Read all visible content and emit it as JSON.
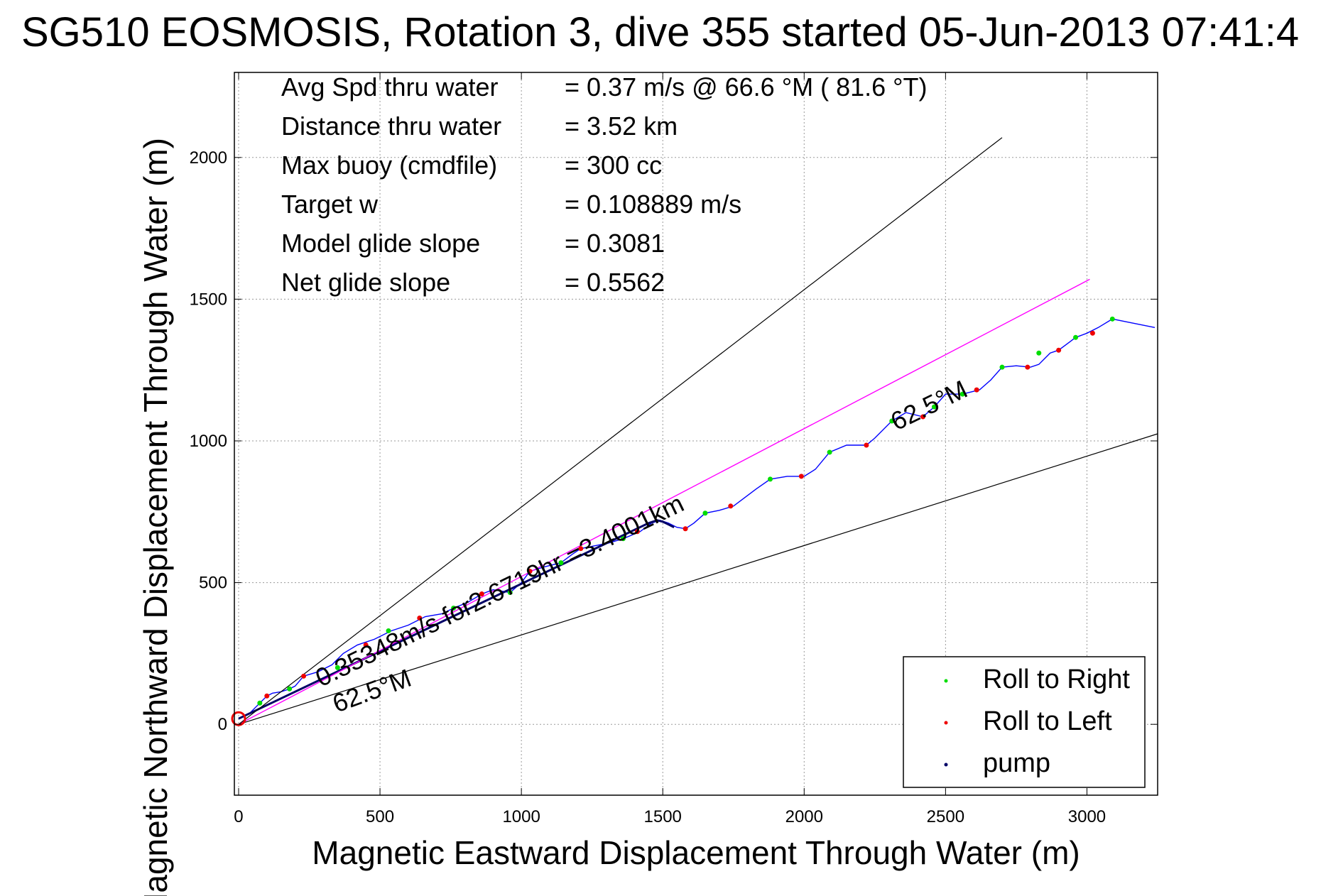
{
  "title": "SG510 EOSMOSIS, Rotation 3, dive 355 started 05-Jun-2013 07:41:4",
  "chart_data": {
    "type": "line",
    "xlabel": "Magnetic Eastward Displacement Through Water (m)",
    "ylabel": "Magnetic Northward Displacement Through Water (m)",
    "xlim": [
      -15,
      3250
    ],
    "ylim": [
      -250,
      2300
    ],
    "xticks": [
      "0",
      "500",
      "1000",
      "1500",
      "2000",
      "2500",
      "3000"
    ],
    "yticks": [
      "0",
      "500",
      "1000",
      "1500",
      "2000"
    ],
    "grid": true,
    "stats": [
      {
        "label": "Avg Spd thru water",
        "value": "=  0.37 m/s @  66.6 °M ( 81.6 °T)"
      },
      {
        "label": "Distance thru water",
        "value": "=  3.52 km"
      },
      {
        "label": "Max buoy (cmdfile)",
        "value": "= 300 cc"
      },
      {
        "label": "Target w",
        "value": "= 0.108889 m/s"
      },
      {
        "label": "Model glide slope",
        "value": "= 0.3081"
      },
      {
        "label": "Net glide slope",
        "value": "= 0.5562"
      }
    ],
    "annotations": [
      {
        "text": "0.35348m/s for2.6719hr =3.4001km"
      },
      {
        "text": "62.5°M"
      },
      {
        "text": "62.5°M"
      }
    ],
    "legend": {
      "position": "bottom-right",
      "entries": [
        {
          "name": "Roll to Right",
          "color": "#00dd00"
        },
        {
          "name": "Roll to Left",
          "color": "#ee0000"
        },
        {
          "name": "pump",
          "color": "#000066"
        }
      ]
    },
    "colors": {
      "track": "#0000ff",
      "depth_average_vector": "#ff00ff",
      "heading_bounds": "#000000"
    },
    "series": [
      {
        "role": "track",
        "x": [
          0,
          40,
          75,
          100,
          120,
          150,
          180,
          200,
          230,
          280,
          330,
          370,
          420,
          480,
          540,
          600,
          660,
          720,
          760,
          810,
          860,
          900,
          960,
          1000,
          1030,
          1080,
          1140,
          1180,
          1210,
          1260,
          1310,
          1360,
          1420,
          1460,
          1490,
          1520,
          1550,
          1580,
          1610,
          1650,
          1700,
          1750,
          1790,
          1830,
          1880,
          1940,
          2000,
          2040,
          2090,
          2150,
          2220,
          2250,
          2310,
          2360,
          2420,
          2460,
          2500,
          2560,
          2620,
          2660,
          2700,
          2750,
          2800,
          2830,
          2870,
          2900,
          2940,
          2960,
          3000,
          3040,
          3090,
          3140,
          3240
        ],
        "y": [
          20,
          40,
          75,
          100,
          110,
          115,
          125,
          135,
          170,
          185,
          210,
          250,
          280,
          300,
          330,
          350,
          380,
          390,
          410,
          430,
          460,
          475,
          465,
          500,
          540,
          555,
          570,
          600,
          620,
          630,
          640,
          655,
          680,
          710,
          720,
          710,
          695,
          690,
          710,
          745,
          755,
          770,
          800,
          830,
          865,
          875,
          875,
          900,
          960,
          985,
          985,
          1010,
          1070,
          1100,
          1085,
          1120,
          1165,
          1165,
          1180,
          1215,
          1260,
          1265,
          1260,
          1270,
          1310,
          1320,
          1350,
          1365,
          1380,
          1400,
          1430,
          1420,
          1400
        ]
      },
      {
        "role": "roll_right",
        "x": [
          75,
          180,
          350,
          530,
          760,
          960,
          1140,
          1360,
          1650,
          1880,
          2090,
          2310,
          2460,
          2560,
          2700,
          2830,
          2960,
          3090
        ],
        "y": [
          75,
          125,
          200,
          330,
          410,
          465,
          570,
          655,
          745,
          865,
          960,
          1070,
          1120,
          1165,
          1260,
          1310,
          1365,
          1430
        ]
      },
      {
        "role": "roll_left",
        "x": [
          100,
          230,
          450,
          640,
          860,
          1030,
          1210,
          1410,
          1580,
          1740,
          1990,
          2220,
          2420,
          2610,
          2790,
          2900,
          3020
        ],
        "y": [
          100,
          170,
          280,
          375,
          460,
          540,
          620,
          680,
          690,
          770,
          875,
          985,
          1085,
          1180,
          1260,
          1320,
          1380
        ]
      },
      {
        "role": "pump",
        "x": [
          0,
          1450,
          1480,
          1500,
          1520,
          1540
        ],
        "y": [
          20,
          710,
          720,
          715,
          705,
          695
        ]
      },
      {
        "role": "depth_average_vector",
        "x": [
          0,
          3010
        ],
        "y": [
          0,
          1570
        ]
      },
      {
        "role": "heading_bound_upper",
        "x": [
          0,
          2700
        ],
        "y": [
          0,
          2070
        ]
      },
      {
        "role": "heading_bound_lower",
        "x": [
          0,
          3250
        ],
        "y": [
          0,
          1025
        ]
      }
    ]
  }
}
